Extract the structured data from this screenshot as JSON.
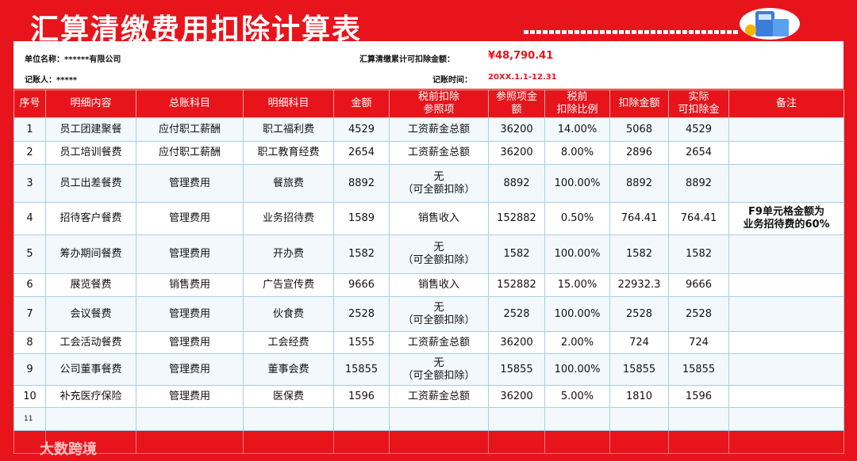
{
  "header": {
    "title": "汇算清缴费用扣除计算表",
    "company": "单位名称：******有限公司",
    "total_label": "汇算清缴累计可扣除金额：",
    "total_value": "¥48,790.41",
    "bookkeeper": "记账人：*****",
    "period_label": "记账时间：",
    "period_value": "20XX.1.1-12.31"
  },
  "table": {
    "columns": [
      "序号",
      "明细内容",
      "总账科目",
      "明细科目",
      "金额",
      "税前扣除\n参照项",
      "参照项金\n额",
      "税前\n扣除比例",
      "扣除金额",
      "实际\n可扣除金",
      "备注"
    ],
    "rows": [
      [
        "1",
        "员工团建聚餐",
        "应付职工薪酬",
        "职工福利费",
        "4529",
        "工资薪金总额",
        "36200",
        "14.00%",
        "5068",
        "4529",
        ""
      ],
      [
        "2",
        "员工培训餐费",
        "应付职工薪酬",
        "职工教育经费",
        "2654",
        "工资薪金总额",
        "36200",
        "8.00%",
        "2896",
        "2654",
        ""
      ],
      [
        "3",
        "员工出差餐费",
        "管理费用",
        "餐旅费",
        "8892",
        "无\n（可全额扣除）",
        "8892",
        "100.00%",
        "8892",
        "8892",
        ""
      ],
      [
        "4",
        "招待客户餐费",
        "管理费用",
        "业务招待费",
        "1589",
        "销售收入",
        "152882",
        "0.50%",
        "764.41",
        "764.41",
        "F9单元格金额为\n业务招待费的60%"
      ],
      [
        "5",
        "筹办期间餐费",
        "管理费用",
        "开办费",
        "1582",
        "无\n（可全额扣除）",
        "1582",
        "100.00%",
        "1582",
        "1582",
        ""
      ],
      [
        "6",
        "展览餐费",
        "销售费用",
        "广告宣传费",
        "9666",
        "销售收入",
        "152882",
        "15.00%",
        "22932.3",
        "9666",
        ""
      ],
      [
        "7",
        "会议餐费",
        "管理费用",
        "伙食费",
        "2528",
        "无\n（可全额扣除）",
        "2528",
        "100.00%",
        "2528",
        "2528",
        ""
      ],
      [
        "8",
        "工会活动餐费",
        "管理费用",
        "工会经费",
        "1555",
        "工资薪金总额",
        "36200",
        "2.00%",
        "724",
        "724",
        ""
      ],
      [
        "9",
        "公司董事餐费",
        "管理费用",
        "董事会费",
        "15855",
        "无\n（可全额扣除）",
        "15855",
        "100.00%",
        "15855",
        "15855",
        ""
      ],
      [
        "10",
        "补充医疗保险",
        "管理费用",
        "医保费",
        "1596",
        "工资薪金总额",
        "36200",
        "5.00%",
        "1810",
        "1596",
        ""
      ],
      [
        "11",
        "",
        "",
        "",
        "",
        "",
        "",
        "",
        "",
        "",
        ""
      ]
    ]
  },
  "watermark": "大数跨境"
}
